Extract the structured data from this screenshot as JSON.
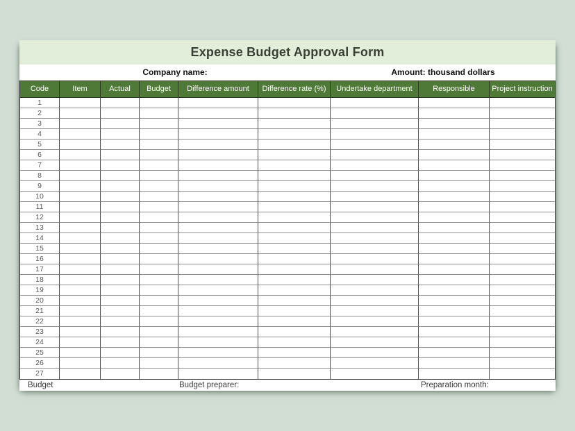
{
  "form": {
    "title": "Expense Budget Approval Form",
    "subheader": {
      "company_label": "Company name:",
      "amount_label": "Amount: thousand dollars"
    },
    "table": {
      "columns": [
        "Code",
        "Item",
        "Actual",
        "Budget",
        "Difference amount",
        "Difference rate (%)",
        "Undertake department",
        "Responsible",
        "Project instruction"
      ],
      "row_numbers": [
        "1",
        "2",
        "3",
        "4",
        "5",
        "6",
        "7",
        "8",
        "9",
        "10",
        "11",
        "12",
        "13",
        "14",
        "15",
        "16",
        "17",
        "18",
        "19",
        "20",
        "21",
        "22",
        "23",
        "24",
        "25",
        "26",
        "27"
      ]
    },
    "footer": {
      "budget_label": "Budget",
      "preparer_label": "Budget preparer:",
      "month_label": "Preparation month:"
    },
    "colors": {
      "page_background": "#d2ded4",
      "title_band_background": "#e3eeda",
      "header_background": "#4f7936",
      "header_text": "#ffffff"
    }
  }
}
